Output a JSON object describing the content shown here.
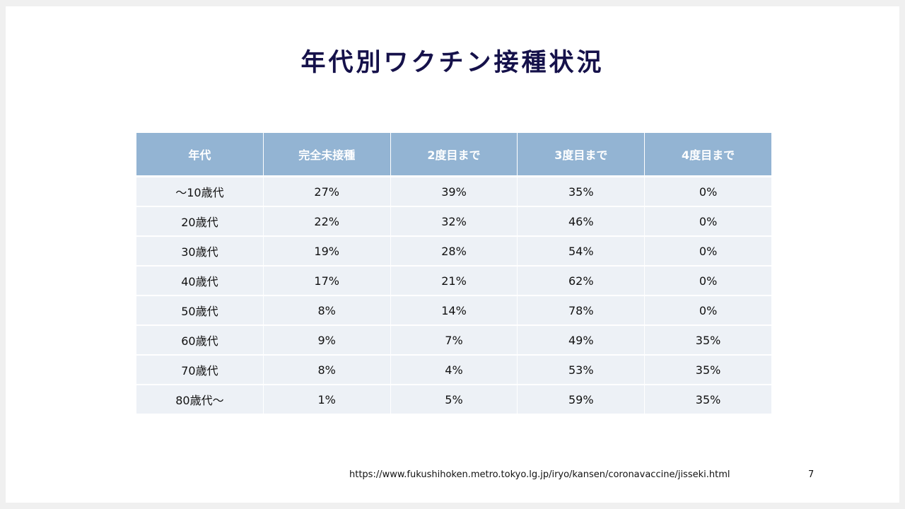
{
  "slide": {
    "title": "年代別ワクチン接種状況",
    "source_url": "https://www.fukushihoken.metro.tokyo.lg.jp/iryo/kansen/coronavaccine/jisseki.html",
    "page_number": "7"
  },
  "table": {
    "headers": [
      "年代",
      "完全未接種",
      "2度目まで",
      "3度目まで",
      "4度目まで"
    ],
    "rows": [
      [
        "～10歳代",
        "27%",
        "39%",
        "35%",
        "0%"
      ],
      [
        "20歳代",
        "22%",
        "32%",
        "46%",
        "0%"
      ],
      [
        "30歳代",
        "19%",
        "28%",
        "54%",
        "0%"
      ],
      [
        "40歳代",
        "17%",
        "21%",
        "62%",
        "0%"
      ],
      [
        "50歳代",
        "8%",
        "14%",
        "78%",
        "0%"
      ],
      [
        "60歳代",
        "9%",
        "7%",
        "49%",
        "35%"
      ],
      [
        "70歳代",
        "8%",
        "4%",
        "53%",
        "35%"
      ],
      [
        "80歳代～",
        "1%",
        "5%",
        "59%",
        "35%"
      ]
    ]
  },
  "colors": {
    "title": "#15114a",
    "header_bg": "#93b4d3",
    "row_bg": "#edf1f6"
  }
}
